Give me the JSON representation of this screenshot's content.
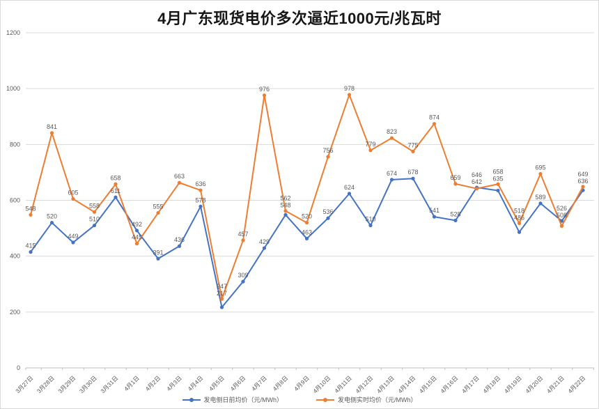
{
  "title": "4月广东现货电价多次逼近1000元/兆瓦时",
  "chart_data": {
    "type": "line",
    "title": "4月广东现货电价多次逼近1000元/兆瓦时",
    "categories": [
      "3月27日",
      "3月28日",
      "3月29日",
      "3月30日",
      "3月31日",
      "4月1日",
      "4月2日",
      "4月3日",
      "4月4日",
      "4月5日",
      "4月6日",
      "4月7日",
      "4月8日",
      "4月9日",
      "4月10日",
      "4月11日",
      "4月12日",
      "4月13日",
      "4月14日",
      "4月15日",
      "4月16日",
      "4月17日",
      "4月18日",
      "4月19日",
      "4月20日",
      "4月21日",
      "4月22日"
    ],
    "series": [
      {
        "name": "发电侧日前均价（元/MWh）",
        "color": "#4472C4",
        "values": [
          415,
          520,
          449,
          510,
          611,
          492,
          391,
          436,
          578,
          217,
          309,
          429,
          548,
          463,
          536,
          624,
          510,
          674,
          678,
          541,
          528,
          646,
          635,
          486,
          589,
          526,
          636
        ]
      },
      {
        "name": "发电侧实时均价（元/MWh）",
        "color": "#ED7D31",
        "values": [
          548,
          841,
          605,
          558,
          658,
          445,
          555,
          663,
          636,
          247,
          457,
          976,
          562,
          520,
          756,
          978,
          779,
          823,
          775,
          874,
          659,
          642,
          658,
          518,
          695,
          508,
          649
        ]
      }
    ],
    "xlabel": "",
    "ylabel": "",
    "ylim": [
      0,
      1200
    ],
    "yticks": [
      0,
      200,
      400,
      600,
      800,
      1000,
      1200
    ],
    "grid": true,
    "data_labels": true,
    "legend_position": "bottom",
    "colors": {
      "gridline": "#d9d9d9",
      "axis": "#bfbfbf",
      "tick_label": "#595959",
      "data_label": "#595959",
      "title_text": "#161616"
    }
  }
}
